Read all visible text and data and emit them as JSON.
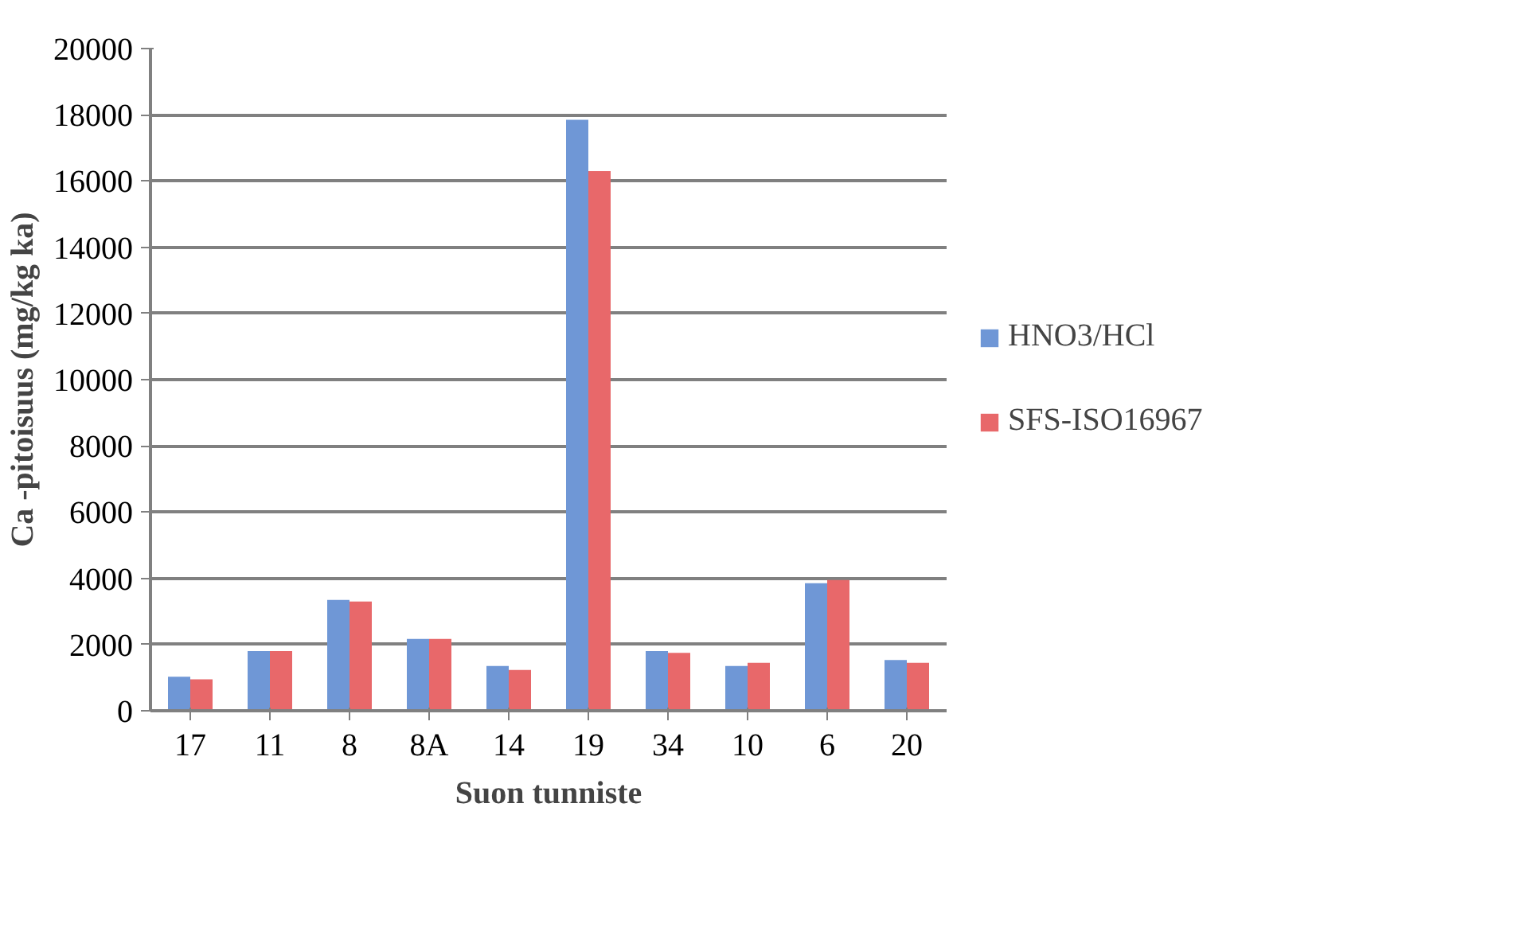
{
  "chart_data": {
    "type": "bar",
    "xlabel": "Suon tunniste",
    "ylabel": "Ca -pitoisuus (mg/kg ka)",
    "categories": [
      "17",
      "11",
      "8",
      "8A",
      "14",
      "19",
      "34",
      "10",
      "6",
      "20"
    ],
    "series": [
      {
        "name": "HNO3/HCl",
        "color": "#6f97d6",
        "values": [
          1030,
          1800,
          3350,
          2170,
          1350,
          17850,
          1800,
          1350,
          3850,
          1530
        ]
      },
      {
        "name": "SFS-ISO16967",
        "color": "#e8686a",
        "values": [
          950,
          1800,
          3300,
          2170,
          1230,
          16300,
          1750,
          1450,
          3950,
          1450
        ]
      }
    ],
    "ylim": [
      0,
      20000
    ],
    "yticks": [
      0,
      2000,
      4000,
      6000,
      8000,
      10000,
      12000,
      14000,
      16000,
      18000,
      20000
    ],
    "grid": "y",
    "legend": "right"
  }
}
